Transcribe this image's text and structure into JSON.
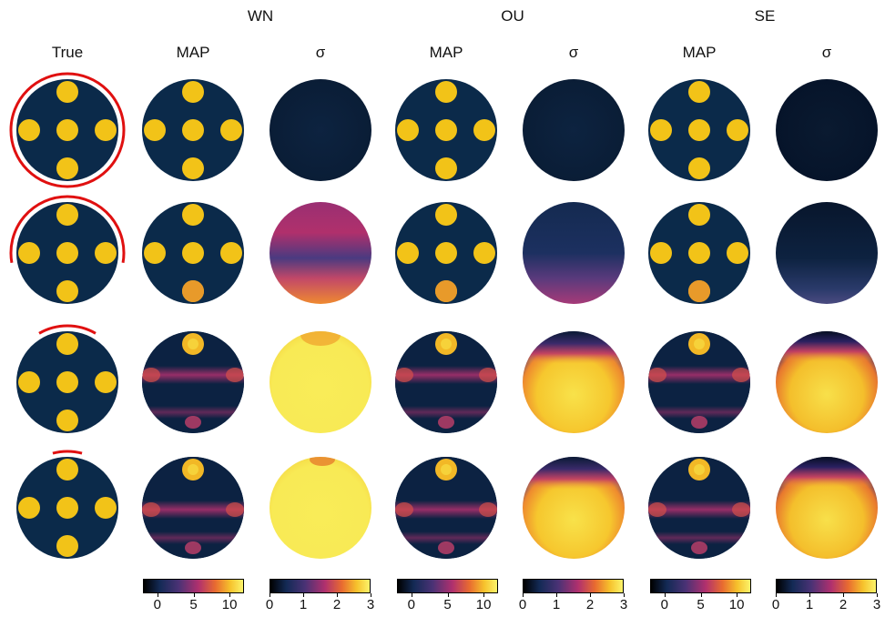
{
  "groups": [
    {
      "label": "WN"
    },
    {
      "label": "OU"
    },
    {
      "label": "SE"
    }
  ],
  "columns": [
    "True",
    "MAP",
    "σ",
    "MAP",
    "σ",
    "MAP",
    "σ"
  ],
  "colorbars": [
    {
      "ticks": [
        "0",
        "5",
        "10"
      ],
      "range": [
        -2,
        12
      ]
    },
    {
      "ticks": [
        "0",
        "1",
        "2",
        "3"
      ],
      "range": [
        0,
        3
      ]
    },
    {
      "ticks": [
        "0",
        "5",
        "10"
      ],
      "range": [
        -2,
        12
      ]
    },
    {
      "ticks": [
        "0",
        "1",
        "2",
        "3"
      ],
      "range": [
        0,
        3
      ]
    },
    {
      "ticks": [
        "0",
        "5",
        "10"
      ],
      "range": [
        -2,
        12
      ]
    },
    {
      "ticks": [
        "0",
        "1",
        "2",
        "3"
      ],
      "range": [
        0,
        3
      ]
    }
  ],
  "colors": {
    "background_inclusion": "#0b2a4a",
    "inclusion": "#f2c318",
    "boundary_arc": "#e01010",
    "colormap": [
      "#000000",
      "#1a2a5a",
      "#6a2a7a",
      "#c8306a",
      "#f0781e",
      "#f8d22a",
      "#fcf56a"
    ]
  },
  "rows": [
    {
      "arc_coverage_deg": 360
    },
    {
      "arc_coverage_deg": 200
    },
    {
      "arc_coverage_deg": 60
    },
    {
      "arc_coverage_deg": 30
    }
  ]
}
